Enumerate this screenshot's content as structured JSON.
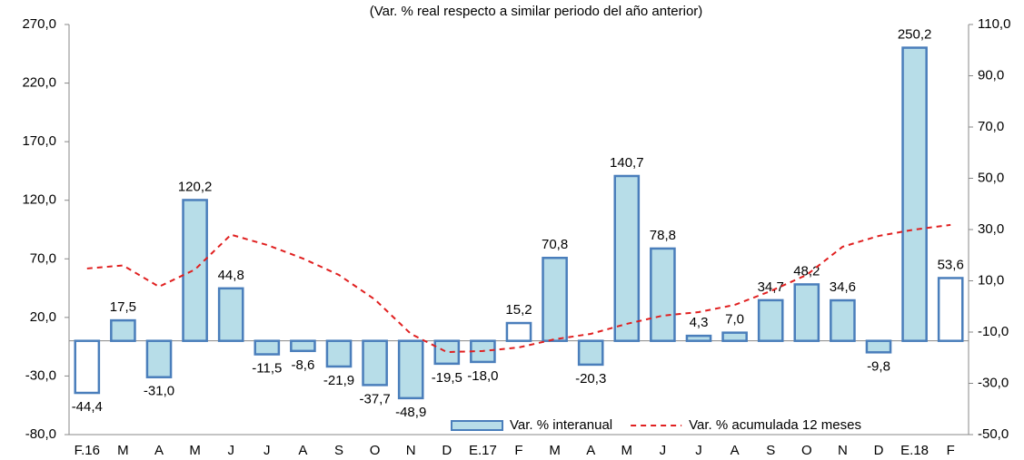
{
  "chart_data": {
    "type": "bar",
    "subtitle": "(Var. % real respecto a similar periodo del año anterior)",
    "categories": [
      "F.16",
      "M",
      "A",
      "M",
      "J",
      "J",
      "A",
      "S",
      "O",
      "N",
      "D",
      "E.17",
      "F",
      "M",
      "A",
      "M",
      "J",
      "J",
      "A",
      "S",
      "O",
      "N",
      "D",
      "E.18",
      "F"
    ],
    "series": [
      {
        "name": "Var. % interanual",
        "type": "bar",
        "edgecolor": "#4a7ebb",
        "colors": [
          "#ffffff",
          "#b7dde8",
          "#b7dde8",
          "#b7dde8",
          "#b7dde8",
          "#b7dde8",
          "#b7dde8",
          "#b7dde8",
          "#b7dde8",
          "#b7dde8",
          "#b7dde8",
          "#b7dde8",
          "#ffffff",
          "#b7dde8",
          "#b7dde8",
          "#b7dde8",
          "#b7dde8",
          "#b7dde8",
          "#b7dde8",
          "#b7dde8",
          "#b7dde8",
          "#b7dde8",
          "#b7dde8",
          "#b7dde8",
          "#ffffff"
        ],
        "values": [
          -44.4,
          17.5,
          -31.0,
          120.2,
          44.8,
          -11.5,
          -8.6,
          -21.9,
          -37.7,
          -48.9,
          -19.5,
          -18.0,
          15.2,
          70.8,
          -20.3,
          140.7,
          78.8,
          4.3,
          7.0,
          34.7,
          48.2,
          34.6,
          -9.8,
          250.2,
          53.6
        ],
        "value_labels": [
          "-44,4",
          "17,5",
          "-31,0",
          "120,2",
          "44,8",
          "-11,5",
          "-8,6",
          "-21,9",
          "-37,7",
          "-48,9",
          "-19,5",
          "-18,0",
          "15,2",
          "70,8",
          "-20,3",
          "140,7",
          "78,8",
          "4,3",
          "7,0",
          "34,7",
          "48,2",
          "34,6",
          "-9,8",
          "250,2",
          "53,6"
        ]
      },
      {
        "name": "Var. % acumulada 12 meses",
        "type": "line",
        "axis": "y2",
        "color": "#e02020",
        "dashed": true,
        "values": [
          14.8,
          16,
          7.7,
          14.4,
          28,
          24,
          18.7,
          12.3,
          2.7,
          -10.7,
          -17.8,
          -17.4,
          -16,
          -12.8,
          -10.7,
          -6.8,
          -3.6,
          -2.2,
          0.6,
          6,
          12.3,
          23.3,
          27.5,
          30,
          31.8
        ]
      }
    ],
    "ylim": [
      -80,
      270
    ],
    "yticks": [
      {
        "value": -80,
        "label": "-80,0"
      },
      {
        "value": -30,
        "label": "-30,0"
      },
      {
        "value": 20,
        "label": "20,0"
      },
      {
        "value": 70,
        "label": "70,0"
      },
      {
        "value": 120,
        "label": "120,0"
      },
      {
        "value": 170,
        "label": "170,0"
      },
      {
        "value": 220,
        "label": "220,0"
      },
      {
        "value": 270,
        "label": "270,0"
      }
    ],
    "y2lim": [
      -50,
      110
    ],
    "y2ticks": [
      {
        "value": -50,
        "label": "-50,0"
      },
      {
        "value": -30,
        "label": "-30,0"
      },
      {
        "value": -10,
        "label": "-10,0"
      },
      {
        "value": 10,
        "label": "10,0"
      },
      {
        "value": 30,
        "label": "30,0"
      },
      {
        "value": 50,
        "label": "50,0"
      },
      {
        "value": 70,
        "label": "70,0"
      },
      {
        "value": 90,
        "label": "90,0"
      },
      {
        "value": 110,
        "label": "110,0"
      }
    ],
    "legend": "lower right"
  }
}
